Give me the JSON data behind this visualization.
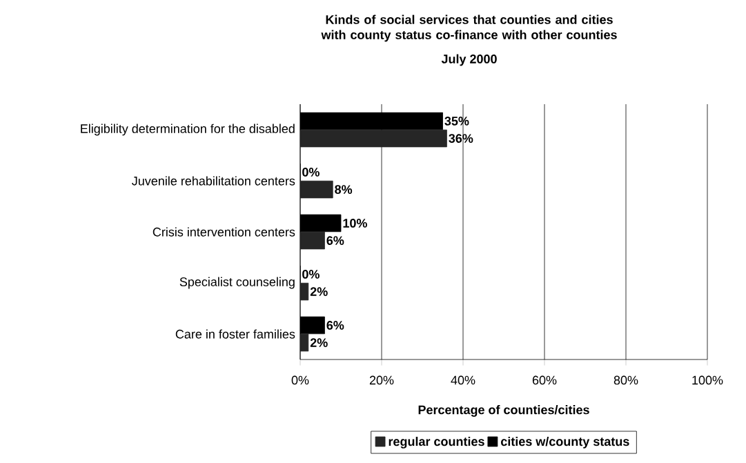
{
  "chart_data": {
    "type": "bar",
    "orientation": "horizontal",
    "title": "Kinds of social services that counties and cities with county status co-finance with other counties",
    "subtitle": "July 2000",
    "xlabel": "Percentage of counties/cities",
    "categories": [
      "Eligibility determination for the disabled",
      "Juvenile rehabilitation centers",
      "Crisis intervention centers",
      "Specialist counseling",
      "Care in foster families"
    ],
    "series": [
      {
        "name": "regular counties",
        "color": "#262626",
        "values": [
          36,
          8,
          6,
          2,
          2
        ],
        "value_labels": [
          "36%",
          "8%",
          "6%",
          "2%",
          "2%"
        ]
      },
      {
        "name": "cities w/county status",
        "color": "#000000",
        "values": [
          35,
          0,
          10,
          0,
          6
        ],
        "value_labels": [
          "35%",
          "0%",
          "10%",
          "0%",
          "6%"
        ]
      }
    ],
    "xlim": [
      0,
      100
    ],
    "xticks": [
      {
        "value": 0,
        "label": "0%"
      },
      {
        "value": 20,
        "label": "20%"
      },
      {
        "value": 40,
        "label": "40%"
      },
      {
        "value": 60,
        "label": "60%"
      },
      {
        "value": 80,
        "label": "80%"
      },
      {
        "value": 100,
        "label": "100%"
      }
    ],
    "grid": "x",
    "legend": "bottom"
  }
}
